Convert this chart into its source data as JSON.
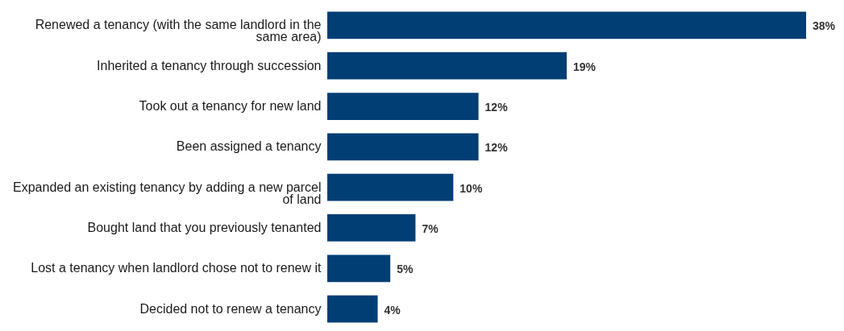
{
  "chart_data": {
    "type": "bar",
    "orientation": "horizontal",
    "categories": [
      "Renewed a tenancy (with the same landlord in the same area)",
      "Inherited a tenancy through succession",
      "Took out a tenancy for new land",
      "Been assigned a tenancy",
      "Expanded an existing tenancy by adding a new parcel of land",
      "Bought land that you previously tenanted",
      "Lost a tenancy when landlord chose not to renew it",
      "Decided not to renew a tenancy"
    ],
    "values": [
      38,
      19,
      12,
      12,
      10,
      7,
      5,
      4
    ],
    "value_labels": [
      "38%",
      "19%",
      "12%",
      "12%",
      "10%",
      "7%",
      "5%",
      "4%"
    ],
    "color": "#003e74"
  }
}
